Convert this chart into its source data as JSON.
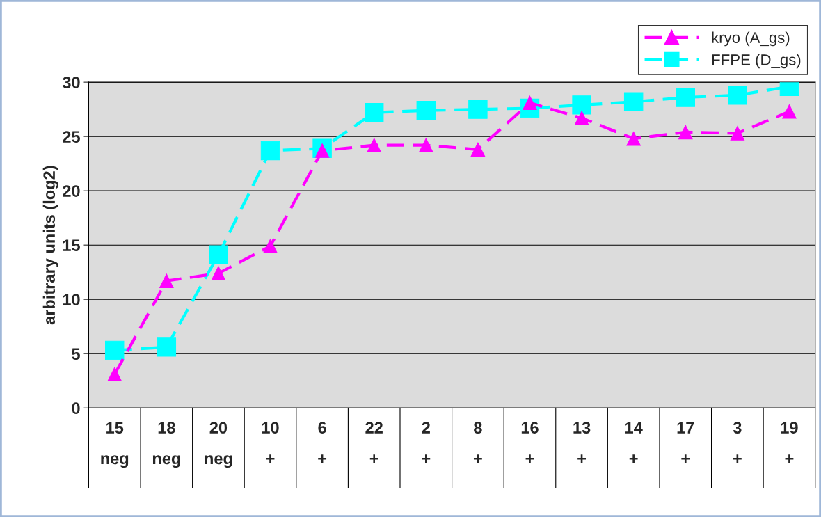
{
  "chart_data": {
    "type": "line",
    "ylabel": "arbitrary units (log2)",
    "categories": [
      "15\nneg",
      "18\nneg",
      "20\nneg",
      "10\n+",
      "6\n+",
      "22\n+",
      "2\n+",
      "8\n+",
      "16\n+",
      "13\n+",
      "14\n+",
      "17\n+",
      "3\n+",
      "19\n+"
    ],
    "series": [
      {
        "name": "kryo (A_gs)",
        "color": "#ff00ff",
        "marker": "triangle",
        "values": [
          3.1,
          11.7,
          12.4,
          14.9,
          23.7,
          24.2,
          24.2,
          23.8,
          28.1,
          26.7,
          24.8,
          25.4,
          25.3,
          27.3
        ]
      },
      {
        "name": "FFPE (D_gs)",
        "color": "#00ffff",
        "marker": "square",
        "values": [
          5.3,
          5.6,
          14.1,
          23.7,
          23.9,
          27.2,
          27.4,
          27.5,
          27.6,
          27.9,
          28.2,
          28.6,
          28.8,
          29.6
        ]
      }
    ],
    "ylim": [
      0,
      30
    ],
    "yticks": [
      0,
      5,
      10,
      15,
      20,
      25,
      30
    ],
    "grid": "y",
    "legend": "top right",
    "line_style": "dashed"
  }
}
